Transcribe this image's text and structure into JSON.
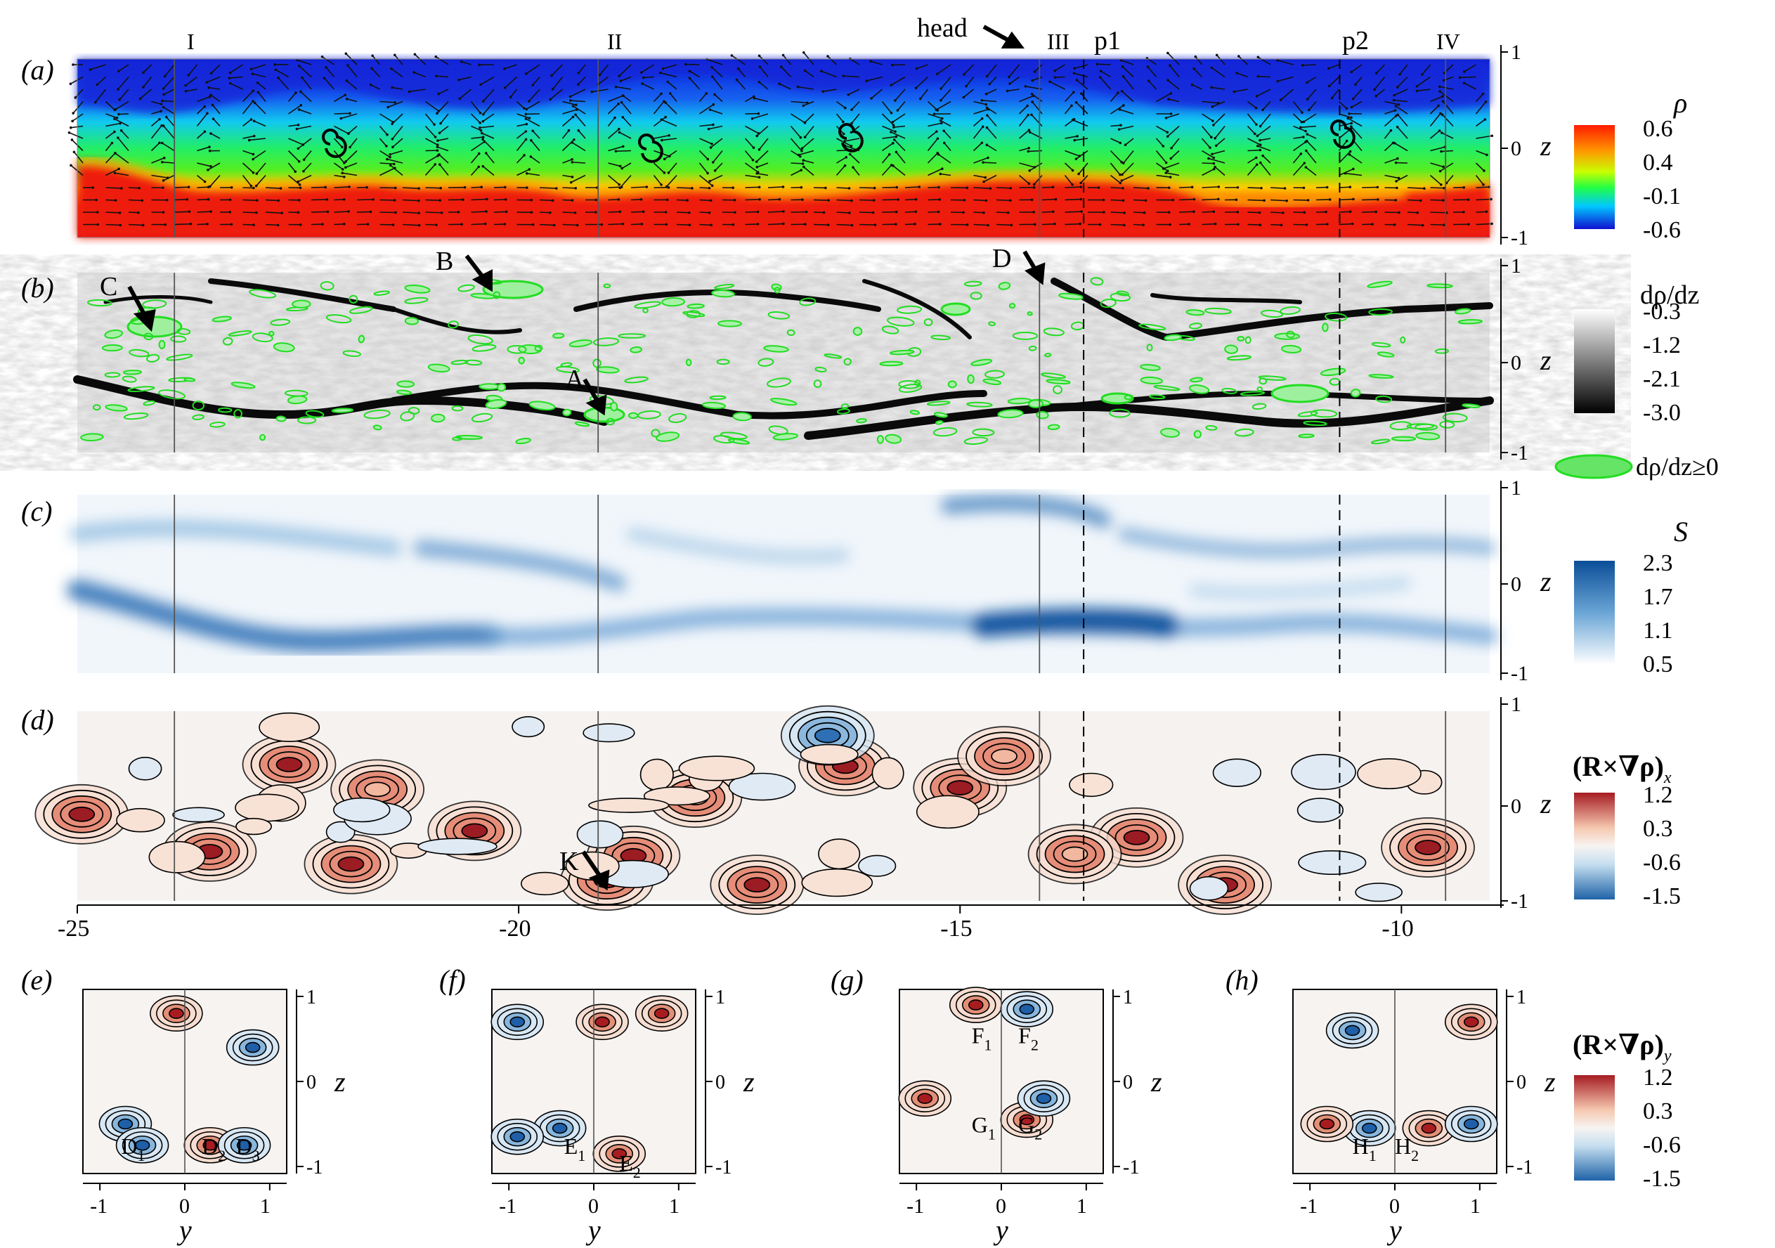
{
  "panels": {
    "a": "(a)",
    "b": "(b)",
    "c": "(c)",
    "d": "(d)",
    "e": "(e)",
    "f": "(f)",
    "g": "(g)",
    "h": "(h)"
  },
  "top_markers": {
    "I": "I",
    "II": "II",
    "III": "III",
    "p1": "p1",
    "p2": "p2",
    "IV": "IV",
    "head": "head"
  },
  "annotations": {
    "A": "A",
    "B": "B",
    "C": "C",
    "D": "D",
    "K": "K"
  },
  "x_axis": {
    "ticks": [
      "-25",
      "-20",
      "-15",
      "-10"
    ],
    "tick_values": [
      -25,
      -20,
      -15,
      -10
    ]
  },
  "z_axis": {
    "label": "z",
    "ticks": [
      "1",
      "0",
      "-1"
    ]
  },
  "y_axis": {
    "label": "y",
    "ticks": [
      "-1",
      "0",
      "1"
    ]
  },
  "legend_rho": {
    "title": "ρ",
    "ticks": [
      "0.6",
      "0.4",
      "-0.1",
      "-0.6"
    ]
  },
  "legend_drho": {
    "title": "dρ/dz",
    "ticks": [
      "-0.3",
      "-1.2",
      "-2.1",
      "-3.0"
    ],
    "ge0": "dρ/dz≥0"
  },
  "legend_S": {
    "title": "S",
    "ticks": [
      "2.3",
      "1.7",
      "1.1",
      "0.5"
    ]
  },
  "legend_Rx": {
    "title": "(R×∇ρ)",
    "sub": "x",
    "ticks": [
      "1.2",
      "0.3",
      "-0.6",
      "-1.5"
    ]
  },
  "legend_Ry": {
    "title": "(R×∇ρ)",
    "sub": "y",
    "ticks": [
      "1.2",
      "0.3",
      "-0.6",
      "-1.5"
    ]
  },
  "subpanel_labels": {
    "e": [
      "D1",
      "D2",
      "D3"
    ],
    "f": [
      "E1",
      "E2"
    ],
    "g": [
      "F1",
      "F2",
      "G1",
      "G2"
    ],
    "h": [
      "H1",
      "H2"
    ]
  },
  "colors": {
    "rho_high": "#e41a1c",
    "rho_low": "#1a2bd6",
    "green": "#22dd22",
    "blue": "#1f5fa8",
    "red": "#a81c20"
  }
}
